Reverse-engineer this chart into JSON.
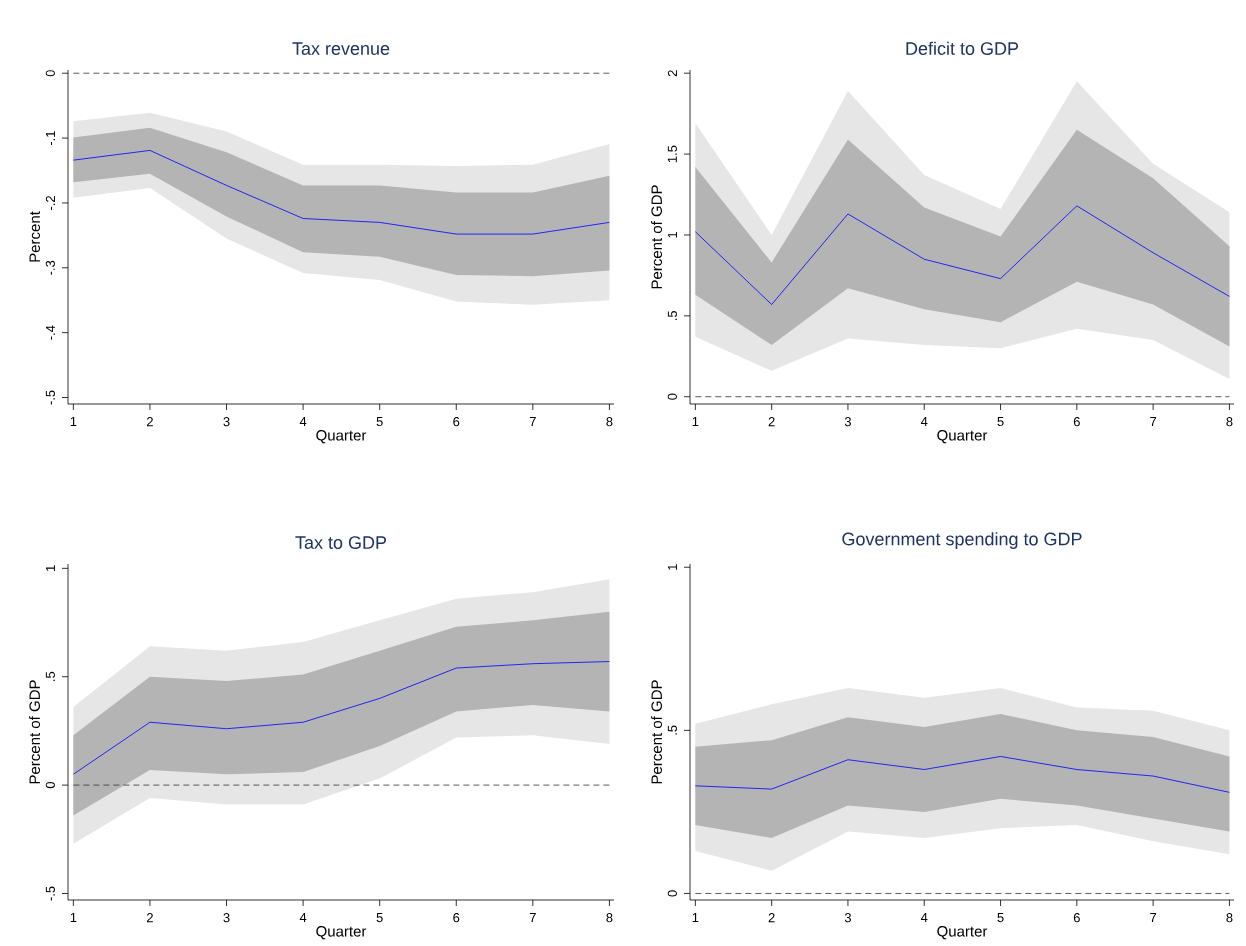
{
  "chart_data": [
    {
      "type": "line",
      "title": "Tax revenue",
      "xlabel": "Quarter",
      "ylabel": "Percent",
      "x": [
        1,
        2,
        3,
        4,
        5,
        6,
        7,
        8
      ],
      "xlim": [
        0.93,
        8.06
      ],
      "xticks": [
        1,
        2,
        3,
        4,
        5,
        6,
        7,
        8
      ],
      "ylim": [
        -0.51,
        0.005
      ],
      "yticks": [
        {
          "value": -0.5,
          "label": "-.5"
        },
        {
          "value": -0.4,
          "label": "-.4"
        },
        {
          "value": -0.3,
          "label": "-.3"
        },
        {
          "value": -0.2,
          "label": "-.2"
        },
        {
          "value": -0.1,
          "label": "-.1"
        },
        {
          "value": 0,
          "label": "0"
        }
      ],
      "series": [
        {
          "color": "#e6e6e6",
          "values": [
            null,
            null,
            null,
            null,
            null,
            null,
            null,
            null
          ],
          "upper": [
            -0.074,
            -0.061,
            -0.09,
            -0.141,
            -0.141,
            -0.143,
            -0.141,
            -0.109
          ],
          "lower": [
            -0.192,
            -0.177,
            -0.255,
            -0.308,
            -0.319,
            -0.352,
            -0.357,
            -0.35
          ]
        },
        {
          "color": "#b4b4b4",
          "values": [
            null,
            null,
            null,
            null,
            null,
            null,
            null,
            null
          ],
          "upper": [
            -0.099,
            -0.084,
            -0.122,
            -0.173,
            -0.173,
            -0.184,
            -0.184,
            -0.158
          ],
          "lower": [
            -0.168,
            -0.155,
            -0.221,
            -0.276,
            -0.283,
            -0.311,
            -0.313,
            -0.304
          ]
        },
        {
          "color": "#0000ff",
          "values": [
            -0.134,
            -0.119,
            -0.173,
            -0.224,
            -0.23,
            -0.248,
            -0.248,
            -0.23
          ]
        }
      ],
      "ref_lines": [
        {
          "axis": "y",
          "value": 0,
          "color": "#333333",
          "line_style": "dashed"
        }
      ]
    },
    {
      "type": "line",
      "title": "Deficit to GDP",
      "xlabel": "Quarter",
      "ylabel": "Percent of GDP",
      "x": [
        1,
        2,
        3,
        4,
        5,
        6,
        7,
        8
      ],
      "xlim": [
        0.93,
        8.06
      ],
      "xticks": [
        1,
        2,
        3,
        4,
        5,
        6,
        7,
        8
      ],
      "ylim": [
        -0.045,
        2.02
      ],
      "yticks": [
        {
          "value": 0,
          "label": "0"
        },
        {
          "value": 0.5,
          "label": ".5"
        },
        {
          "value": 1,
          "label": "1"
        },
        {
          "value": 1.5,
          "label": "1.5"
        },
        {
          "value": 2,
          "label": "2"
        }
      ],
      "series": [
        {
          "color": "#e6e6e6",
          "values": [
            null,
            null,
            null,
            null,
            null,
            null,
            null,
            null
          ],
          "upper": [
            1.69,
            1.0,
            1.89,
            1.37,
            1.16,
            1.95,
            1.44,
            1.14
          ],
          "lower": [
            0.37,
            0.16,
            0.36,
            0.32,
            0.3,
            0.42,
            0.35,
            0.11
          ]
        },
        {
          "color": "#b4b4b4",
          "values": [
            null,
            null,
            null,
            null,
            null,
            null,
            null,
            null
          ],
          "upper": [
            1.42,
            0.83,
            1.59,
            1.17,
            0.99,
            1.65,
            1.35,
            0.93
          ],
          "lower": [
            0.63,
            0.32,
            0.67,
            0.54,
            0.46,
            0.71,
            0.57,
            0.31
          ]
        },
        {
          "color": "#0000ff",
          "values": [
            1.02,
            0.57,
            1.13,
            0.85,
            0.73,
            1.18,
            0.89,
            0.62
          ]
        }
      ],
      "ref_lines": [
        {
          "axis": "y",
          "value": 0,
          "color": "#333333",
          "line_style": "dashed"
        }
      ]
    },
    {
      "type": "line",
      "title": "Tax to GDP",
      "xlabel": "Quarter",
      "ylabel": "Percent of GDP",
      "x": [
        1,
        2,
        3,
        4,
        5,
        6,
        7,
        8
      ],
      "xlim": [
        0.93,
        8.06
      ],
      "xticks": [
        1,
        2,
        3,
        4,
        5,
        6,
        7,
        8
      ],
      "ylim": [
        -0.53,
        1.02
      ],
      "yticks": [
        {
          "value": -0.5,
          "label": "-.5"
        },
        {
          "value": 0,
          "label": "0"
        },
        {
          "value": 0.5,
          "label": ".5"
        },
        {
          "value": 1,
          "label": "1"
        }
      ],
      "series": [
        {
          "color": "#e6e6e6",
          "values": [
            null,
            null,
            null,
            null,
            null,
            null,
            null,
            null
          ],
          "upper": [
            0.36,
            0.64,
            0.62,
            0.66,
            0.76,
            0.86,
            0.89,
            0.95
          ],
          "lower": [
            -0.27,
            -0.06,
            -0.09,
            -0.09,
            0.03,
            0.22,
            0.23,
            0.19
          ]
        },
        {
          "color": "#b4b4b4",
          "values": [
            null,
            null,
            null,
            null,
            null,
            null,
            null,
            null
          ],
          "upper": [
            0.23,
            0.5,
            0.48,
            0.51,
            0.62,
            0.73,
            0.76,
            0.8
          ],
          "lower": [
            -0.14,
            0.07,
            0.05,
            0.06,
            0.18,
            0.34,
            0.37,
            0.34
          ]
        },
        {
          "color": "#0000ff",
          "values": [
            0.05,
            0.29,
            0.26,
            0.29,
            0.4,
            0.54,
            0.56,
            0.57
          ]
        }
      ],
      "ref_lines": [
        {
          "axis": "y",
          "value": 0,
          "color": "#333333",
          "line_style": "dashed"
        }
      ]
    },
    {
      "type": "line",
      "title": "Government spending to GDP",
      "xlabel": "Quarter",
      "ylabel": "Percent of GDP",
      "x": [
        1,
        2,
        3,
        4,
        5,
        6,
        7,
        8
      ],
      "xlim": [
        0.93,
        8.06
      ],
      "xticks": [
        1,
        2,
        3,
        4,
        5,
        6,
        7,
        8
      ],
      "ylim": [
        -0.02,
        1.01
      ],
      "yticks": [
        {
          "value": 0,
          "label": "0"
        },
        {
          "value": 0.5,
          "label": ".5"
        },
        {
          "value": 1,
          "label": "1"
        }
      ],
      "series": [
        {
          "color": "#e6e6e6",
          "values": [
            null,
            null,
            null,
            null,
            null,
            null,
            null,
            null
          ],
          "upper": [
            0.52,
            0.58,
            0.63,
            0.6,
            0.63,
            0.57,
            0.56,
            0.5
          ],
          "lower": [
            0.13,
            0.07,
            0.19,
            0.17,
            0.2,
            0.21,
            0.16,
            0.12
          ]
        },
        {
          "color": "#b4b4b4",
          "values": [
            null,
            null,
            null,
            null,
            null,
            null,
            null,
            null
          ],
          "upper": [
            0.45,
            0.47,
            0.54,
            0.51,
            0.55,
            0.5,
            0.48,
            0.42
          ],
          "lower": [
            0.21,
            0.17,
            0.27,
            0.25,
            0.29,
            0.27,
            0.23,
            0.19
          ]
        },
        {
          "color": "#0000ff",
          "values": [
            0.33,
            0.32,
            0.41,
            0.38,
            0.42,
            0.38,
            0.36,
            0.31
          ]
        }
      ],
      "ref_lines": [
        {
          "axis": "y",
          "value": 0,
          "color": "#333333",
          "line_style": "dashed"
        }
      ]
    }
  ]
}
